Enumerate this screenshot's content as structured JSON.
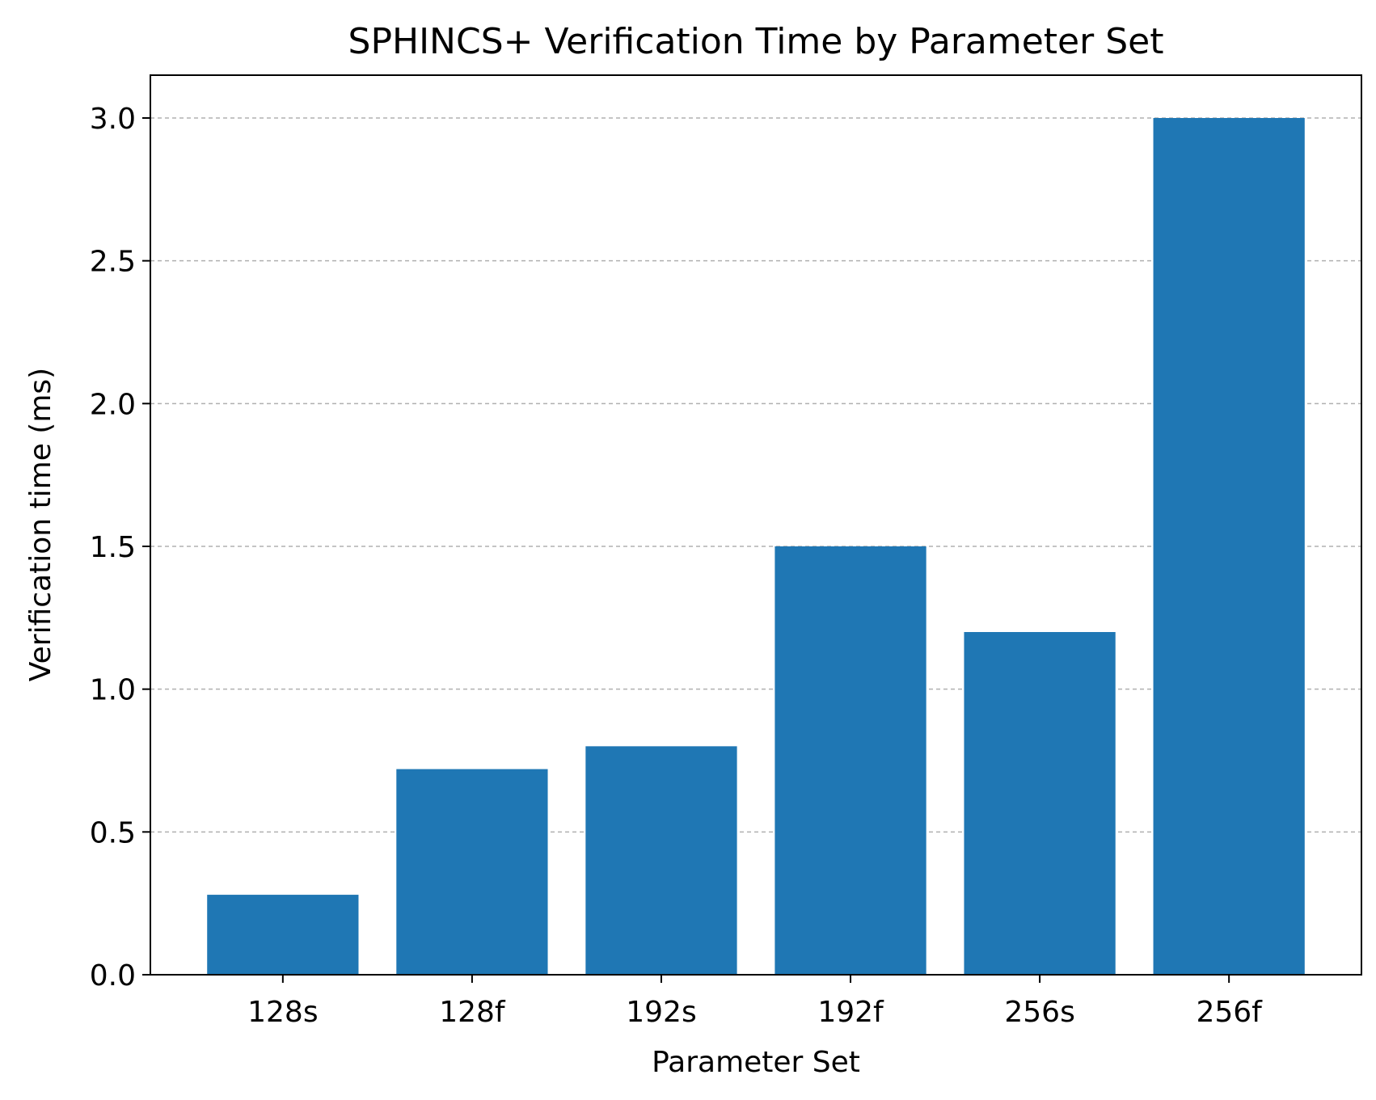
{
  "chart_data": {
    "type": "bar",
    "title": "SPHINCS+ Verification Time by Parameter Set",
    "xlabel": "Parameter Set",
    "ylabel": "Verification time (ms)",
    "categories": [
      "128s",
      "128f",
      "192s",
      "192f",
      "256s",
      "256f"
    ],
    "values": [
      0.28,
      0.72,
      0.8,
      1.5,
      1.2,
      3.0
    ],
    "ylim": [
      0,
      3.15
    ],
    "yticks": [
      "0.0",
      "0.5",
      "1.0",
      "1.5",
      "2.0",
      "2.5",
      "3.0"
    ],
    "grid": "y-axis dashed",
    "bar_color": "#1f77b4",
    "grid_color": "#b0b0b0"
  }
}
